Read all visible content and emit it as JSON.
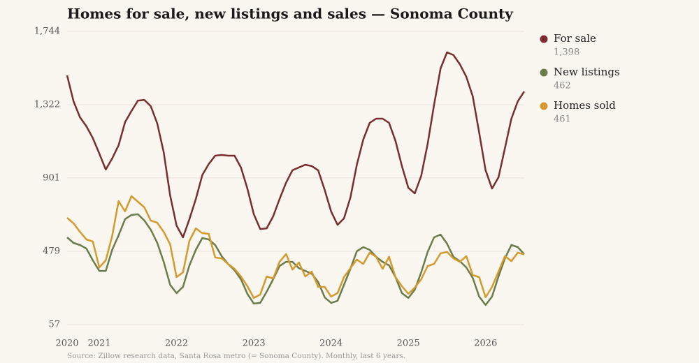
{
  "chart_data": {
    "type": "line",
    "title": "Homes for sale, new listings and sales — Sonoma County",
    "source": "Source: Zillow research data, Santa Rosa metro (= Sonoma County). Monthly, last 6 years.",
    "categories": [
      "2020",
      null,
      null,
      null,
      null,
      "2021",
      null,
      null,
      null,
      null,
      null,
      null,
      null,
      null,
      null,
      null,
      null,
      "2022",
      null,
      null,
      null,
      null,
      null,
      null,
      null,
      null,
      null,
      null,
      null,
      "2023",
      null,
      null,
      null,
      null,
      null,
      null,
      null,
      null,
      null,
      null,
      null,
      "2024",
      null,
      null,
      null,
      null,
      null,
      null,
      null,
      null,
      null,
      null,
      null,
      "2025",
      null,
      null,
      null,
      null,
      null,
      null,
      null,
      null,
      null,
      null,
      null,
      "2026",
      null,
      null,
      null,
      null,
      null,
      null
    ],
    "ylim": [
      57,
      1744
    ],
    "yticks": [
      57,
      479,
      901,
      {
        "value": 1322,
        "label": "1,322"
      },
      {
        "value": 1744,
        "label": "1,744"
      }
    ],
    "grid": true,
    "series": [
      {
        "name": "For sale",
        "color": "#7b2d2d",
        "last_value_label": "1,398",
        "values": [
          1491,
          1342,
          1250,
          1198,
          1130,
          1041,
          949,
          1013,
          1089,
          1222,
          1286,
          1346,
          1350,
          1314,
          1214,
          1049,
          800,
          627,
          559,
          664,
          780,
          917,
          981,
          1029,
          1033,
          1029,
          1029,
          961,
          840,
          692,
          607,
          611,
          680,
          780,
          873,
          945,
          961,
          977,
          969,
          945,
          832,
          708,
          631,
          668,
          788,
          977,
          1122,
          1218,
          1242,
          1242,
          1218,
          1114,
          969,
          844,
          812,
          913,
          1097,
          1322,
          1531,
          1624,
          1608,
          1555,
          1483,
          1371,
          1162,
          945,
          840,
          905,
          1073,
          1242,
          1342,
          1398
        ]
      },
      {
        "name": "New listings",
        "color": "#6b7c4b",
        "last_value_label": "462",
        "values": [
          559,
          527,
          515,
          495,
          427,
          366,
          366,
          487,
          571,
          664,
          688,
          692,
          656,
          603,
          527,
          418,
          286,
          238,
          274,
          398,
          487,
          555,
          547,
          515,
          451,
          406,
          370,
          318,
          234,
          178,
          182,
          246,
          318,
          394,
          418,
          418,
          382,
          366,
          350,
          302,
          214,
          182,
          194,
          286,
          378,
          479,
          503,
          487,
          447,
          418,
          398,
          330,
          238,
          210,
          258,
          358,
          475,
          559,
          575,
          523,
          447,
          422,
          386,
          326,
          218,
          170,
          218,
          334,
          438,
          515,
          503,
          462
        ]
      },
      {
        "name": "Homes sold",
        "color": "#d49a2e",
        "last_value_label": "461",
        "values": [
          672,
          640,
          591,
          547,
          535,
          386,
          427,
          567,
          768,
          708,
          796,
          764,
          732,
          656,
          643,
          591,
          519,
          330,
          358,
          539,
          611,
          583,
          579,
          443,
          438,
          406,
          378,
          334,
          278,
          210,
          230,
          334,
          322,
          418,
          463,
          374,
          414,
          334,
          362,
          274,
          274,
          218,
          238,
          330,
          382,
          431,
          406,
          471,
          447,
          378,
          447,
          330,
          278,
          234,
          270,
          318,
          394,
          406,
          467,
          475,
          438,
          418,
          451,
          342,
          330,
          214,
          274,
          362,
          451,
          422,
          471,
          461
        ]
      }
    ]
  }
}
